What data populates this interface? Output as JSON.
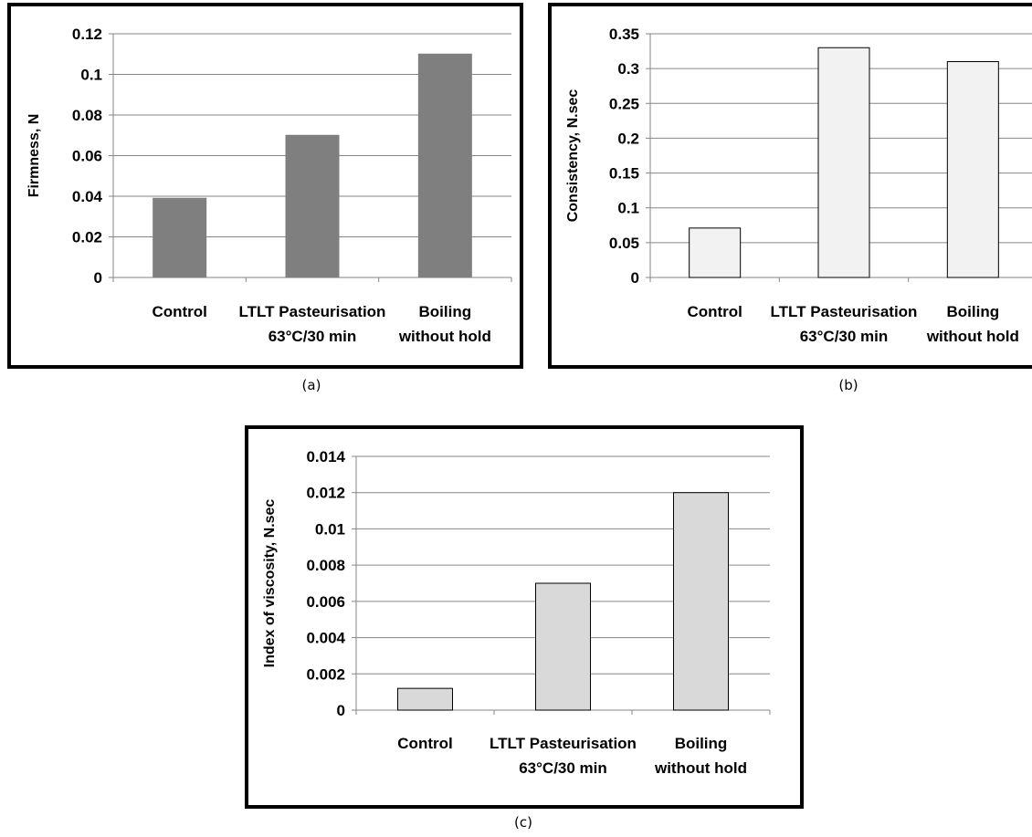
{
  "captions": {
    "a": "(a)",
    "b": "(b)",
    "c": "(c)"
  },
  "chart_data": [
    {
      "id": "a",
      "type": "bar",
      "categories": [
        [
          "Control"
        ],
        [
          "LTLT Pasteurisation",
          "63°C/30 min"
        ],
        [
          "Boiling",
          "without hold"
        ]
      ],
      "values": [
        0.039,
        0.07,
        0.11
      ],
      "ylabel": "Firmness, N",
      "ylim": [
        0,
        0.12
      ],
      "yticks": [
        "0",
        "0.02",
        "0.04",
        "0.06",
        "0.08",
        "0.1",
        "0.12"
      ],
      "grid": true,
      "bar_color": "#7f7f7f",
      "bar_stroke": "#7f7f7f"
    },
    {
      "id": "b",
      "type": "bar",
      "categories": [
        [
          "Control"
        ],
        [
          "LTLT Pasteurisation",
          "63°C/30 min"
        ],
        [
          "Boiling",
          "without hold"
        ]
      ],
      "values": [
        0.071,
        0.33,
        0.31
      ],
      "ylabel": "Consistency, N.sec",
      "ylim": [
        0,
        0.35
      ],
      "yticks": [
        "0",
        "0.05",
        "0.1",
        "0.15",
        "0.2",
        "0.25",
        "0.3",
        "0.35"
      ],
      "grid": true,
      "bar_color": "#f2f2f2",
      "bar_stroke": "#000000"
    },
    {
      "id": "c",
      "type": "bar",
      "categories": [
        [
          "Control"
        ],
        [
          "LTLT Pasteurisation",
          "63°C/30 min"
        ],
        [
          "Boiling",
          "without hold"
        ]
      ],
      "values": [
        0.0012,
        0.007,
        0.012
      ],
      "ylabel": "Index of viscosity, N.sec",
      "ylim": [
        0,
        0.014
      ],
      "yticks": [
        "0",
        "0.002",
        "0.004",
        "0.006",
        "0.008",
        "0.01",
        "0.012",
        "0.014"
      ],
      "grid": true,
      "bar_color": "#d9d9d9",
      "bar_stroke": "#000000"
    }
  ]
}
